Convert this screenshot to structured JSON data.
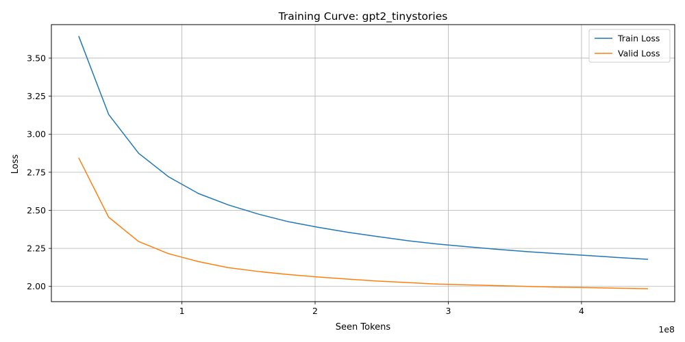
{
  "chart_data": {
    "type": "line",
    "title": "Training Curve: gpt2_tinystories",
    "xlabel": "Seen Tokens",
    "ylabel": "Loss",
    "x_scale_label": "1e8",
    "x_multiplier": 100000000,
    "xlim": [
      2000000,
      470000000
    ],
    "ylim": [
      1.9,
      3.72
    ],
    "x_ticks": [
      100000000,
      200000000,
      300000000,
      400000000
    ],
    "x_tick_labels": [
      "1",
      "2",
      "3",
      "4"
    ],
    "y_ticks": [
      2.0,
      2.25,
      2.5,
      2.75,
      3.0,
      3.25,
      3.5
    ],
    "y_tick_labels": [
      "2.00",
      "2.25",
      "2.50",
      "2.75",
      "3.00",
      "3.25",
      "3.50"
    ],
    "grid": true,
    "legend": "top-right",
    "x": [
      22500000,
      45000000,
      67500000,
      90000000,
      112500000,
      135000000,
      157500000,
      180000000,
      202500000,
      225000000,
      247500000,
      270000000,
      292500000,
      315000000,
      337500000,
      360000000,
      382500000,
      405000000,
      427500000,
      450000000
    ],
    "series": [
      {
        "name": "Train Loss",
        "color": "#1f77b4",
        "values": [
          3.645,
          3.13,
          2.875,
          2.72,
          2.61,
          2.535,
          2.475,
          2.425,
          2.388,
          2.355,
          2.327,
          2.3,
          2.278,
          2.26,
          2.243,
          2.228,
          2.215,
          2.203,
          2.19,
          2.178
        ]
      },
      {
        "name": "Valid Loss",
        "color": "#ff7f0e",
        "values": [
          2.845,
          2.455,
          2.295,
          2.215,
          2.163,
          2.123,
          2.098,
          2.078,
          2.062,
          2.048,
          2.035,
          2.025,
          2.015,
          2.01,
          2.005,
          2.0,
          1.995,
          1.992,
          1.988,
          1.985
        ]
      }
    ]
  }
}
